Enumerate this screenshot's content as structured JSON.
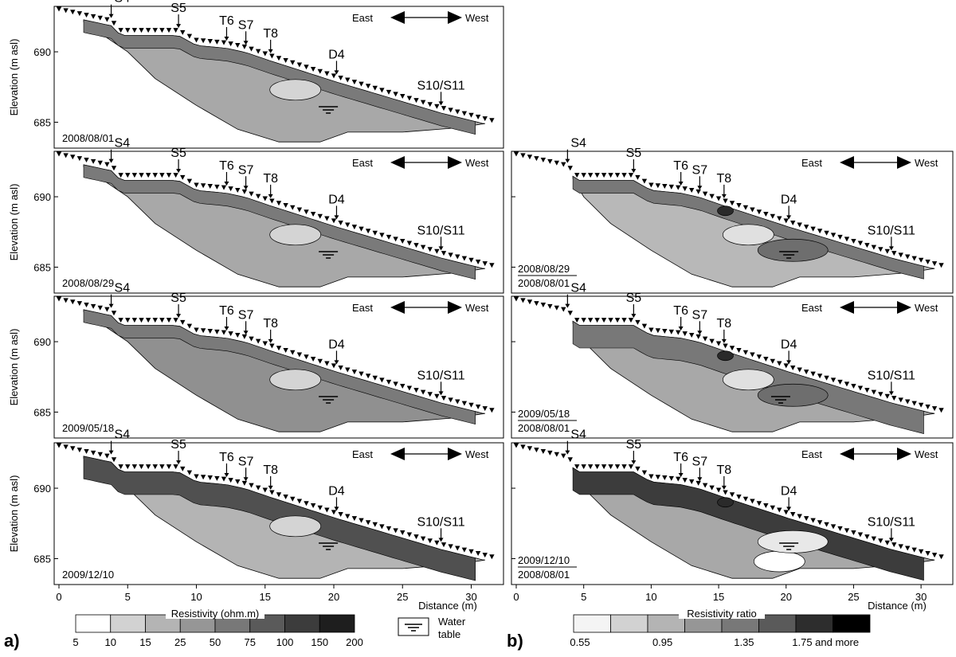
{
  "figure_labels": {
    "a": "a)",
    "b": "b)"
  },
  "panels_a": [
    {
      "date": "2008/08/01"
    },
    {
      "date": "2008/08/29"
    },
    {
      "date": "2009/05/18"
    },
    {
      "date": "2009/12/10"
    }
  ],
  "panels_b": [
    {
      "top": "2008/08/29",
      "bottom": "2008/08/01"
    },
    {
      "top": "2009/05/18",
      "bottom": "2008/08/01"
    },
    {
      "top": "2009/12/10",
      "bottom": "2008/08/01"
    }
  ],
  "ylabel": "Elevation (m asl)",
  "xlabel": "Distance (m)",
  "yticks": [
    "690",
    "685"
  ],
  "xticks": [
    "0",
    "5",
    "10",
    "15",
    "20",
    "25",
    "30"
  ],
  "direction": {
    "east": "East",
    "west": "West"
  },
  "markers": [
    {
      "label": "S4",
      "x": 3.8
    },
    {
      "label": "S5",
      "x": 8.7
    },
    {
      "label": "T6",
      "x": 12.2
    },
    {
      "label": "S7",
      "x": 13.6
    },
    {
      "label": "T8",
      "x": 15.4
    },
    {
      "label": "D4",
      "x": 20.2
    },
    {
      "label": "S10/S11",
      "x": 27.8
    }
  ],
  "legend_a": {
    "title": "Resistivity (ohm.m)",
    "ticks": [
      "5",
      "10",
      "15",
      "25",
      "50",
      "75",
      "100",
      "150",
      "200"
    ],
    "colors": [
      "#ffffff",
      "#d2d2d2",
      "#b4b4b4",
      "#969696",
      "#787878",
      "#5a5a5a",
      "#3c3c3c",
      "#1e1e1e"
    ]
  },
  "legend_b": {
    "title": "Resistivity ratio",
    "ticks": [
      "0.55",
      "0.95",
      "1.35",
      "1.75 and more"
    ],
    "colors": [
      "#f4f4f4",
      "#d2d2d2",
      "#b4b4b4",
      "#969696",
      "#787878",
      "#5a5a5a",
      "#2d2d2d",
      "#000000"
    ]
  },
  "water_table_label": [
    "Water",
    "table"
  ],
  "chart_data": {
    "type": "heatmap",
    "description_units": {
      "x": "Distance (m)",
      "y": "Elevation (m asl)"
    },
    "xlim": [
      0,
      32
    ],
    "ylim": [
      683.5,
      693
    ],
    "xticks": [
      0,
      5,
      10,
      15,
      20,
      25,
      30
    ],
    "yticks": [
      685,
      690
    ],
    "surface_profile": [
      [
        0,
        692.8
      ],
      [
        3.8,
        692.0
      ],
      [
        4.5,
        691.3
      ],
      [
        8.7,
        691.3
      ],
      [
        10,
        690.6
      ],
      [
        12.2,
        690.4
      ],
      [
        13.6,
        690.1
      ],
      [
        15.4,
        689.5
      ],
      [
        20.2,
        688.0
      ],
      [
        27.8,
        685.8
      ],
      [
        31.5,
        684.9
      ]
    ],
    "resistivity_classes_ohm_m": [
      5,
      10,
      15,
      25,
      50,
      75,
      100,
      150,
      200
    ],
    "ratio_classes": [
      0.55,
      0.95,
      1.35,
      1.75
    ]
  }
}
